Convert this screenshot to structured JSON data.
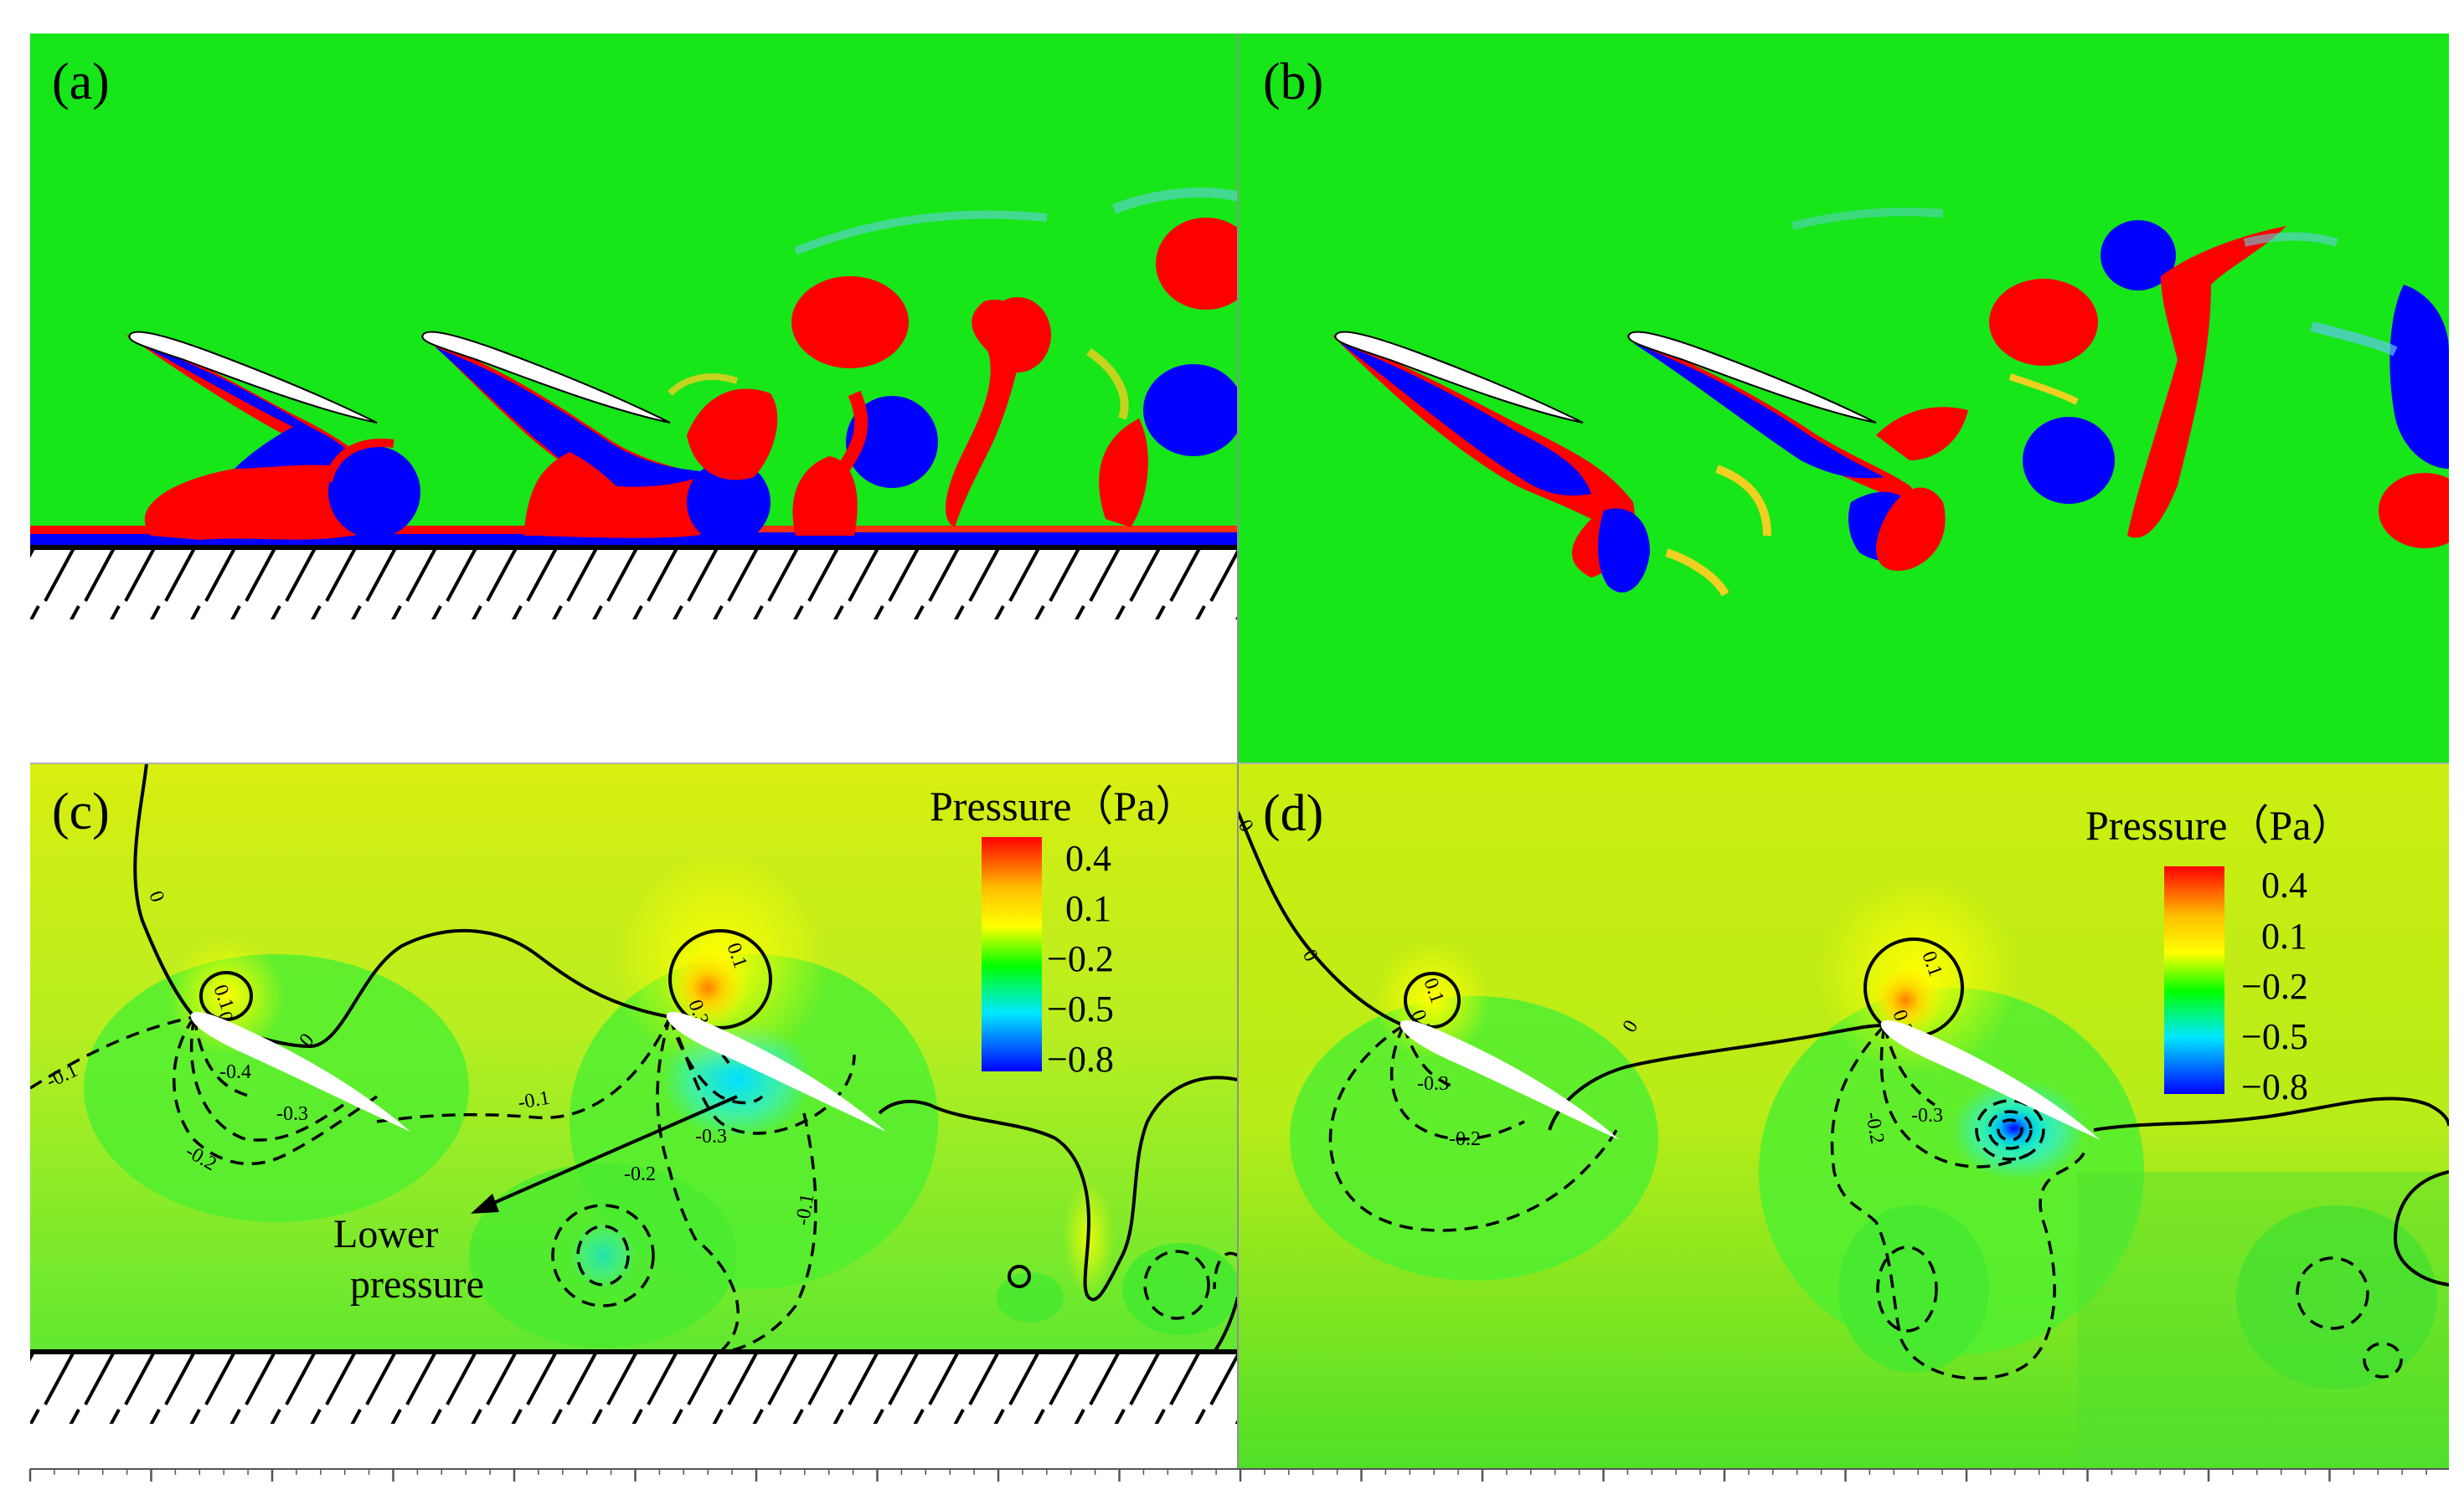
{
  "panels": {
    "a": {
      "label": "(a)"
    },
    "b": {
      "label": "(b)"
    },
    "c": {
      "label": "(c)",
      "legend": {
        "title": "Pressure（Pa）",
        "ticks": [
          "0.4",
          "0.1",
          "−0.2",
          "−0.5",
          "−0.8"
        ]
      },
      "contour_labels": [
        "0",
        "0.1",
        "0.1",
        "0.3",
        "0.3",
        "-0.4",
        "-0.3",
        "-0.2",
        "-0.1",
        "-0.1",
        "-0.3",
        "-0.2",
        "-0.1",
        "0"
      ],
      "annotation": {
        "line1": "Lower",
        "line2": "pressure"
      }
    },
    "d": {
      "label": "(d)",
      "legend": {
        "title": "Pressure（Pa）",
        "ticks": [
          "0.4",
          "0.1",
          "−0.2",
          "−0.5",
          "−0.8"
        ]
      },
      "contour_labels": [
        "0",
        "0",
        "0.1",
        "0.1",
        "0.3",
        "0.3",
        "-0.3",
        "-0.2",
        "-0.3",
        "-0.2",
        "0"
      ]
    }
  },
  "colors": {
    "vort_background": "#17e619",
    "vort_positive": "#ff0000",
    "vort_negative": "#0000ff",
    "pressure_high": "#ff0000",
    "pressure_mid": "#ffff00",
    "pressure_zero": "#c8f010",
    "pressure_low": "#00ff00",
    "pressure_min": "#0000ff"
  }
}
